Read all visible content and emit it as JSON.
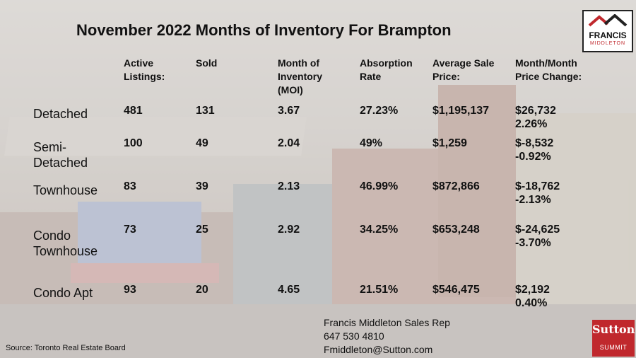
{
  "title": "November 2022 Months of Inventory For Brampton",
  "logo": {
    "name": "FRANCIS",
    "sub": "MIDDLETON"
  },
  "headers": {
    "active": [
      "Active",
      "Listings:"
    ],
    "sold": [
      "Sold"
    ],
    "moi": [
      "Month of",
      "Inventory",
      "(MOI)"
    ],
    "absorption": [
      "Absorption",
      "Rate"
    ],
    "avg_price": [
      "Average Sale",
      "Price:"
    ],
    "change": [
      "Month/Month",
      "Price Change:"
    ]
  },
  "rows": [
    {
      "label": [
        "Detached"
      ],
      "active": "481",
      "sold": "131",
      "moi": "3.67",
      "absorption": "27.23%",
      "avg_price": "$1,195,137",
      "change": [
        "$26,732",
        "2.26%"
      ]
    },
    {
      "label": [
        "Semi-",
        "Detached"
      ],
      "active": "100",
      "sold": "49",
      "moi": "2.04",
      "absorption": "49%",
      "avg_price": "$1,259",
      "change": [
        "$-8,532",
        "-0.92%"
      ]
    },
    {
      "label": [
        "Townhouse"
      ],
      "active": "83",
      "sold": "39",
      "moi": "2.13",
      "absorption": "46.99%",
      "avg_price": "$872,866",
      "change": [
        "$-18,762",
        "-2.13%"
      ]
    },
    {
      "label": [
        "Condo",
        "Townhouse"
      ],
      "active": "73",
      "sold": "25",
      "moi": "2.92",
      "absorption": "34.25%",
      "avg_price": "$653,248",
      "change": [
        "$-24,625",
        "-3.70%"
      ]
    },
    {
      "label": [
        "Condo Apt"
      ],
      "active": "93",
      "sold": "20",
      "moi": "4.65",
      "absorption": "21.51%",
      "avg_price": "$546,475",
      "change": [
        "$2,192",
        "0.40%"
      ]
    }
  ],
  "contact": {
    "name": "Francis Middleton Sales Rep",
    "phone": "647 530 4810",
    "email": "Fmiddleton@Sutton.com"
  },
  "source": "Source: Toronto Real Estate Board",
  "sutton": {
    "name": "Sutton",
    "sub": "SUMMIT"
  },
  "colors": {
    "brand_red": "#c0282d",
    "text": "#111111"
  }
}
